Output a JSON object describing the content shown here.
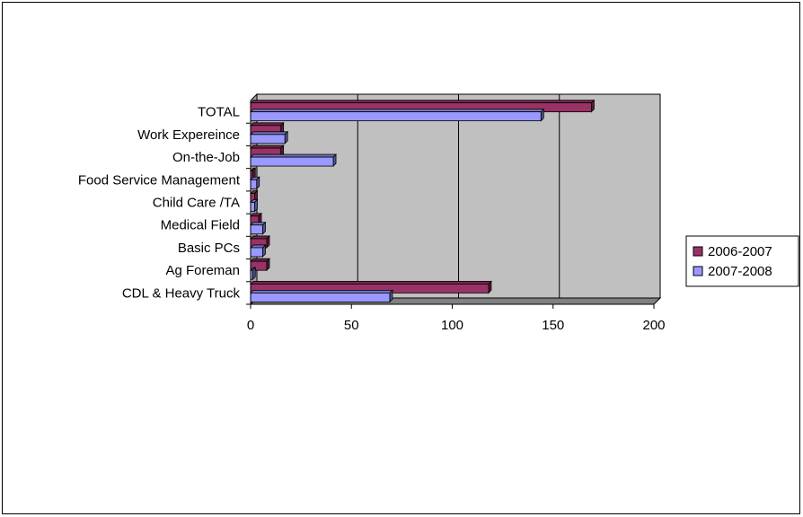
{
  "chart_data": {
    "type": "bar",
    "orientation": "horizontal",
    "style": "3d-clustered",
    "categories": [
      "CDL & Heavy Truck",
      "Ag Foreman",
      "Basic PCs",
      "Medical Field",
      "Child Care /TA",
      "Food Service Management",
      "On-the-Job",
      "Work Expereince",
      "TOTAL"
    ],
    "series": [
      {
        "name": "2006-2007",
        "color": "#993366",
        "values": [
          118,
          8,
          8,
          4,
          2,
          1,
          15,
          15,
          169
        ]
      },
      {
        "name": "2007-2008",
        "color": "#9999ff",
        "values": [
          69,
          1,
          6,
          6,
          2,
          3,
          41,
          17,
          144
        ]
      }
    ],
    "title": "",
    "xlabel": "",
    "ylabel": "",
    "xlim": [
      0,
      200
    ],
    "xticks": [
      "0",
      "50",
      "100",
      "150",
      "200"
    ],
    "grid": true,
    "legend_position": "right",
    "wall_color": "#c0c0c0"
  }
}
